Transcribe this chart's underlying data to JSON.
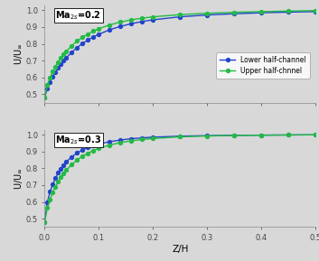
{
  "title1": "Ma$_{2s}$=0.2",
  "title2": "Ma$_{2s}$=0.3",
  "xlabel": "Z/H",
  "ylabel": "U/U$_\\infty$",
  "xlim": [
    0,
    0.5
  ],
  "ylim": [
    0.45,
    1.03
  ],
  "xticks": [
    0,
    0.1,
    0.2,
    0.3,
    0.4,
    0.5
  ],
  "yticks": [
    0.5,
    0.6,
    0.7,
    0.8,
    0.9,
    1.0
  ],
  "color_lower": "#2244cc",
  "color_upper": "#22bb44",
  "legend_labels": [
    "Lower half-channel",
    "Upper half-chnnel"
  ],
  "bg_color": "#e8e8e8",
  "z_data": [
    0.0,
    0.005,
    0.01,
    0.015,
    0.02,
    0.025,
    0.03,
    0.035,
    0.04,
    0.05,
    0.06,
    0.07,
    0.08,
    0.09,
    0.1,
    0.12,
    0.14,
    0.16,
    0.18,
    0.2,
    0.25,
    0.3,
    0.35,
    0.4,
    0.45,
    0.5
  ],
  "lower_02": [
    0.48,
    0.535,
    0.572,
    0.604,
    0.632,
    0.657,
    0.679,
    0.699,
    0.717,
    0.75,
    0.778,
    0.802,
    0.823,
    0.841,
    0.857,
    0.884,
    0.904,
    0.92,
    0.933,
    0.943,
    0.961,
    0.972,
    0.979,
    0.985,
    0.989,
    0.992
  ],
  "upper_02": [
    0.48,
    0.555,
    0.598,
    0.634,
    0.665,
    0.692,
    0.716,
    0.737,
    0.756,
    0.789,
    0.817,
    0.84,
    0.859,
    0.876,
    0.89,
    0.913,
    0.93,
    0.943,
    0.953,
    0.961,
    0.974,
    0.982,
    0.988,
    0.992,
    0.995,
    0.998
  ],
  "lower_03": [
    0.48,
    0.6,
    0.66,
    0.705,
    0.742,
    0.773,
    0.799,
    0.82,
    0.839,
    0.869,
    0.892,
    0.91,
    0.924,
    0.935,
    0.945,
    0.959,
    0.969,
    0.977,
    0.982,
    0.986,
    0.992,
    0.995,
    0.997,
    0.998,
    0.999,
    1.0
  ],
  "upper_03": [
    0.48,
    0.565,
    0.615,
    0.655,
    0.69,
    0.72,
    0.746,
    0.769,
    0.789,
    0.823,
    0.851,
    0.873,
    0.891,
    0.906,
    0.919,
    0.939,
    0.954,
    0.964,
    0.972,
    0.978,
    0.988,
    0.993,
    0.996,
    0.998,
    0.999,
    1.0
  ],
  "marker": "o",
  "markersize": 2.8,
  "linewidth": 1.0
}
